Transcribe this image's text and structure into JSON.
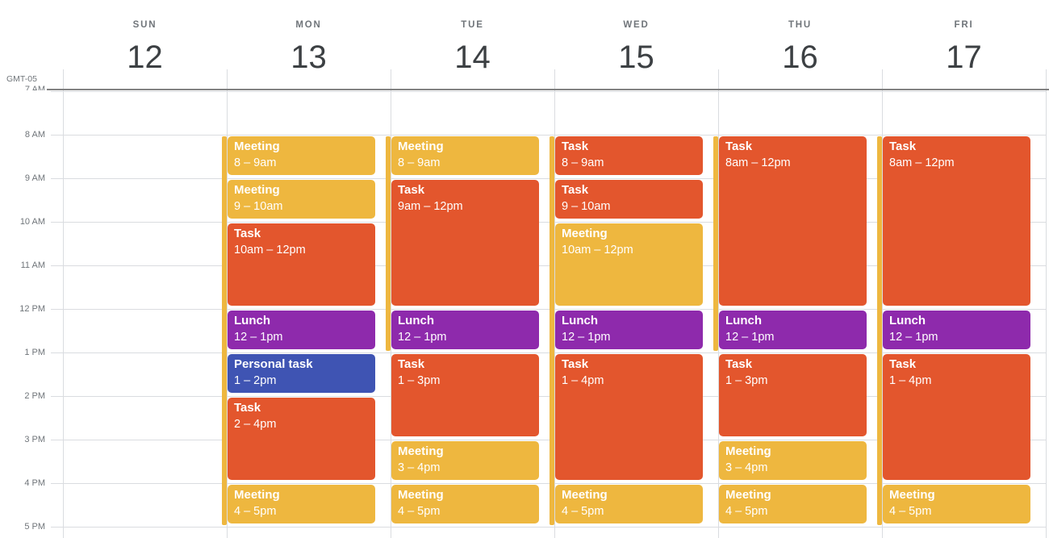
{
  "timezone_label": "GMT-05",
  "colors": {
    "meeting": "#EEB73F",
    "task": "#E3562D",
    "lunch": "#8E2AAC",
    "personal": "#3F54B3",
    "grid_line": "#DADCE0",
    "hour_label": "#70757A",
    "date_number": "#3C4043",
    "weekday_label": "#70757A",
    "boundary_line": "#828282",
    "event_text": "#FFFFFF"
  },
  "hours": [
    {
      "h": 7,
      "label": "7 AM"
    },
    {
      "h": 8,
      "label": "8 AM"
    },
    {
      "h": 9,
      "label": "9 AM"
    },
    {
      "h": 10,
      "label": "10 AM"
    },
    {
      "h": 11,
      "label": "11 AM"
    },
    {
      "h": 12,
      "label": "12 PM"
    },
    {
      "h": 13,
      "label": "1 PM"
    },
    {
      "h": 14,
      "label": "2 PM"
    },
    {
      "h": 15,
      "label": "3 PM"
    },
    {
      "h": 16,
      "label": "4 PM"
    },
    {
      "h": 17,
      "label": "5 PM"
    }
  ],
  "days": [
    {
      "name": "SUN",
      "date": "12",
      "events": []
    },
    {
      "name": "MON",
      "date": "13",
      "events": [
        {
          "title": "Meeting",
          "time": "8 – 9am",
          "start": 8,
          "end": 9,
          "color": "meeting"
        },
        {
          "title": "Meeting",
          "time": "9 – 10am",
          "start": 9,
          "end": 10,
          "color": "meeting"
        },
        {
          "title": "Task",
          "time": "10am – 12pm",
          "start": 10,
          "end": 12,
          "color": "task"
        },
        {
          "title": "Lunch",
          "time": "12 – 1pm",
          "start": 12,
          "end": 13,
          "color": "lunch"
        },
        {
          "title": "Personal task",
          "time": "1 – 2pm",
          "start": 13,
          "end": 14,
          "color": "personal"
        },
        {
          "title": "Task",
          "time": "2 – 4pm",
          "start": 14,
          "end": 16,
          "color": "task"
        },
        {
          "title": "Meeting",
          "time": "4 – 5pm",
          "start": 16,
          "end": 17,
          "color": "meeting"
        }
      ]
    },
    {
      "name": "TUE",
      "date": "14",
      "events": [
        {
          "title": "Meeting",
          "time": "8 – 9am",
          "start": 8,
          "end": 9,
          "color": "meeting"
        },
        {
          "title": "Task",
          "time": "9am – 12pm",
          "start": 9,
          "end": 12,
          "color": "task"
        },
        {
          "title": "Lunch",
          "time": "12 – 1pm",
          "start": 12,
          "end": 13,
          "color": "lunch"
        },
        {
          "title": "Task",
          "time": "1 – 3pm",
          "start": 13,
          "end": 15,
          "color": "task"
        },
        {
          "title": "Meeting",
          "time": "3 – 4pm",
          "start": 15,
          "end": 16,
          "color": "meeting"
        },
        {
          "title": "Meeting",
          "time": "4 – 5pm",
          "start": 16,
          "end": 17,
          "color": "meeting"
        }
      ]
    },
    {
      "name": "WED",
      "date": "15",
      "events": [
        {
          "title": "Task",
          "time": "8 – 9am",
          "start": 8,
          "end": 9,
          "color": "task"
        },
        {
          "title": "Task",
          "time": "9 – 10am",
          "start": 9,
          "end": 10,
          "color": "task"
        },
        {
          "title": "Meeting",
          "time": "10am – 12pm",
          "start": 10,
          "end": 12,
          "color": "meeting"
        },
        {
          "title": "Lunch",
          "time": "12 – 1pm",
          "start": 12,
          "end": 13,
          "color": "lunch"
        },
        {
          "title": "Task",
          "time": "1 – 4pm",
          "start": 13,
          "end": 16,
          "color": "task"
        },
        {
          "title": "Meeting",
          "time": "4 – 5pm",
          "start": 16,
          "end": 17,
          "color": "meeting"
        }
      ]
    },
    {
      "name": "THU",
      "date": "16",
      "events": [
        {
          "title": "Task",
          "time": "8am – 12pm",
          "start": 8,
          "end": 12,
          "color": "task"
        },
        {
          "title": "Lunch",
          "time": "12 – 1pm",
          "start": 12,
          "end": 13,
          "color": "lunch"
        },
        {
          "title": "Task",
          "time": "1 – 3pm",
          "start": 13,
          "end": 15,
          "color": "task"
        },
        {
          "title": "Meeting",
          "time": "3 – 4pm",
          "start": 15,
          "end": 16,
          "color": "meeting"
        },
        {
          "title": "Meeting",
          "time": "4 – 5pm",
          "start": 16,
          "end": 17,
          "color": "meeting"
        }
      ]
    },
    {
      "name": "FRI",
      "date": "17",
      "events": [
        {
          "title": "Task",
          "time": "8am – 12pm",
          "start": 8,
          "end": 12,
          "color": "task"
        },
        {
          "title": "Lunch",
          "time": "12 – 1pm",
          "start": 12,
          "end": 13,
          "color": "lunch"
        },
        {
          "title": "Task",
          "time": "1 – 4pm",
          "start": 13,
          "end": 16,
          "color": "task"
        },
        {
          "title": "Meeting",
          "time": "4 – 5pm",
          "start": 16,
          "end": 17,
          "color": "meeting"
        }
      ]
    }
  ],
  "underlay_strips": [
    {
      "day": 1,
      "start": 8,
      "end": 17
    },
    {
      "day": 2,
      "start": 8,
      "end": 13
    },
    {
      "day": 3,
      "start": 8,
      "end": 17
    },
    {
      "day": 4,
      "start": 8,
      "end": 13
    },
    {
      "day": 5,
      "start": 8,
      "end": 17
    }
  ]
}
